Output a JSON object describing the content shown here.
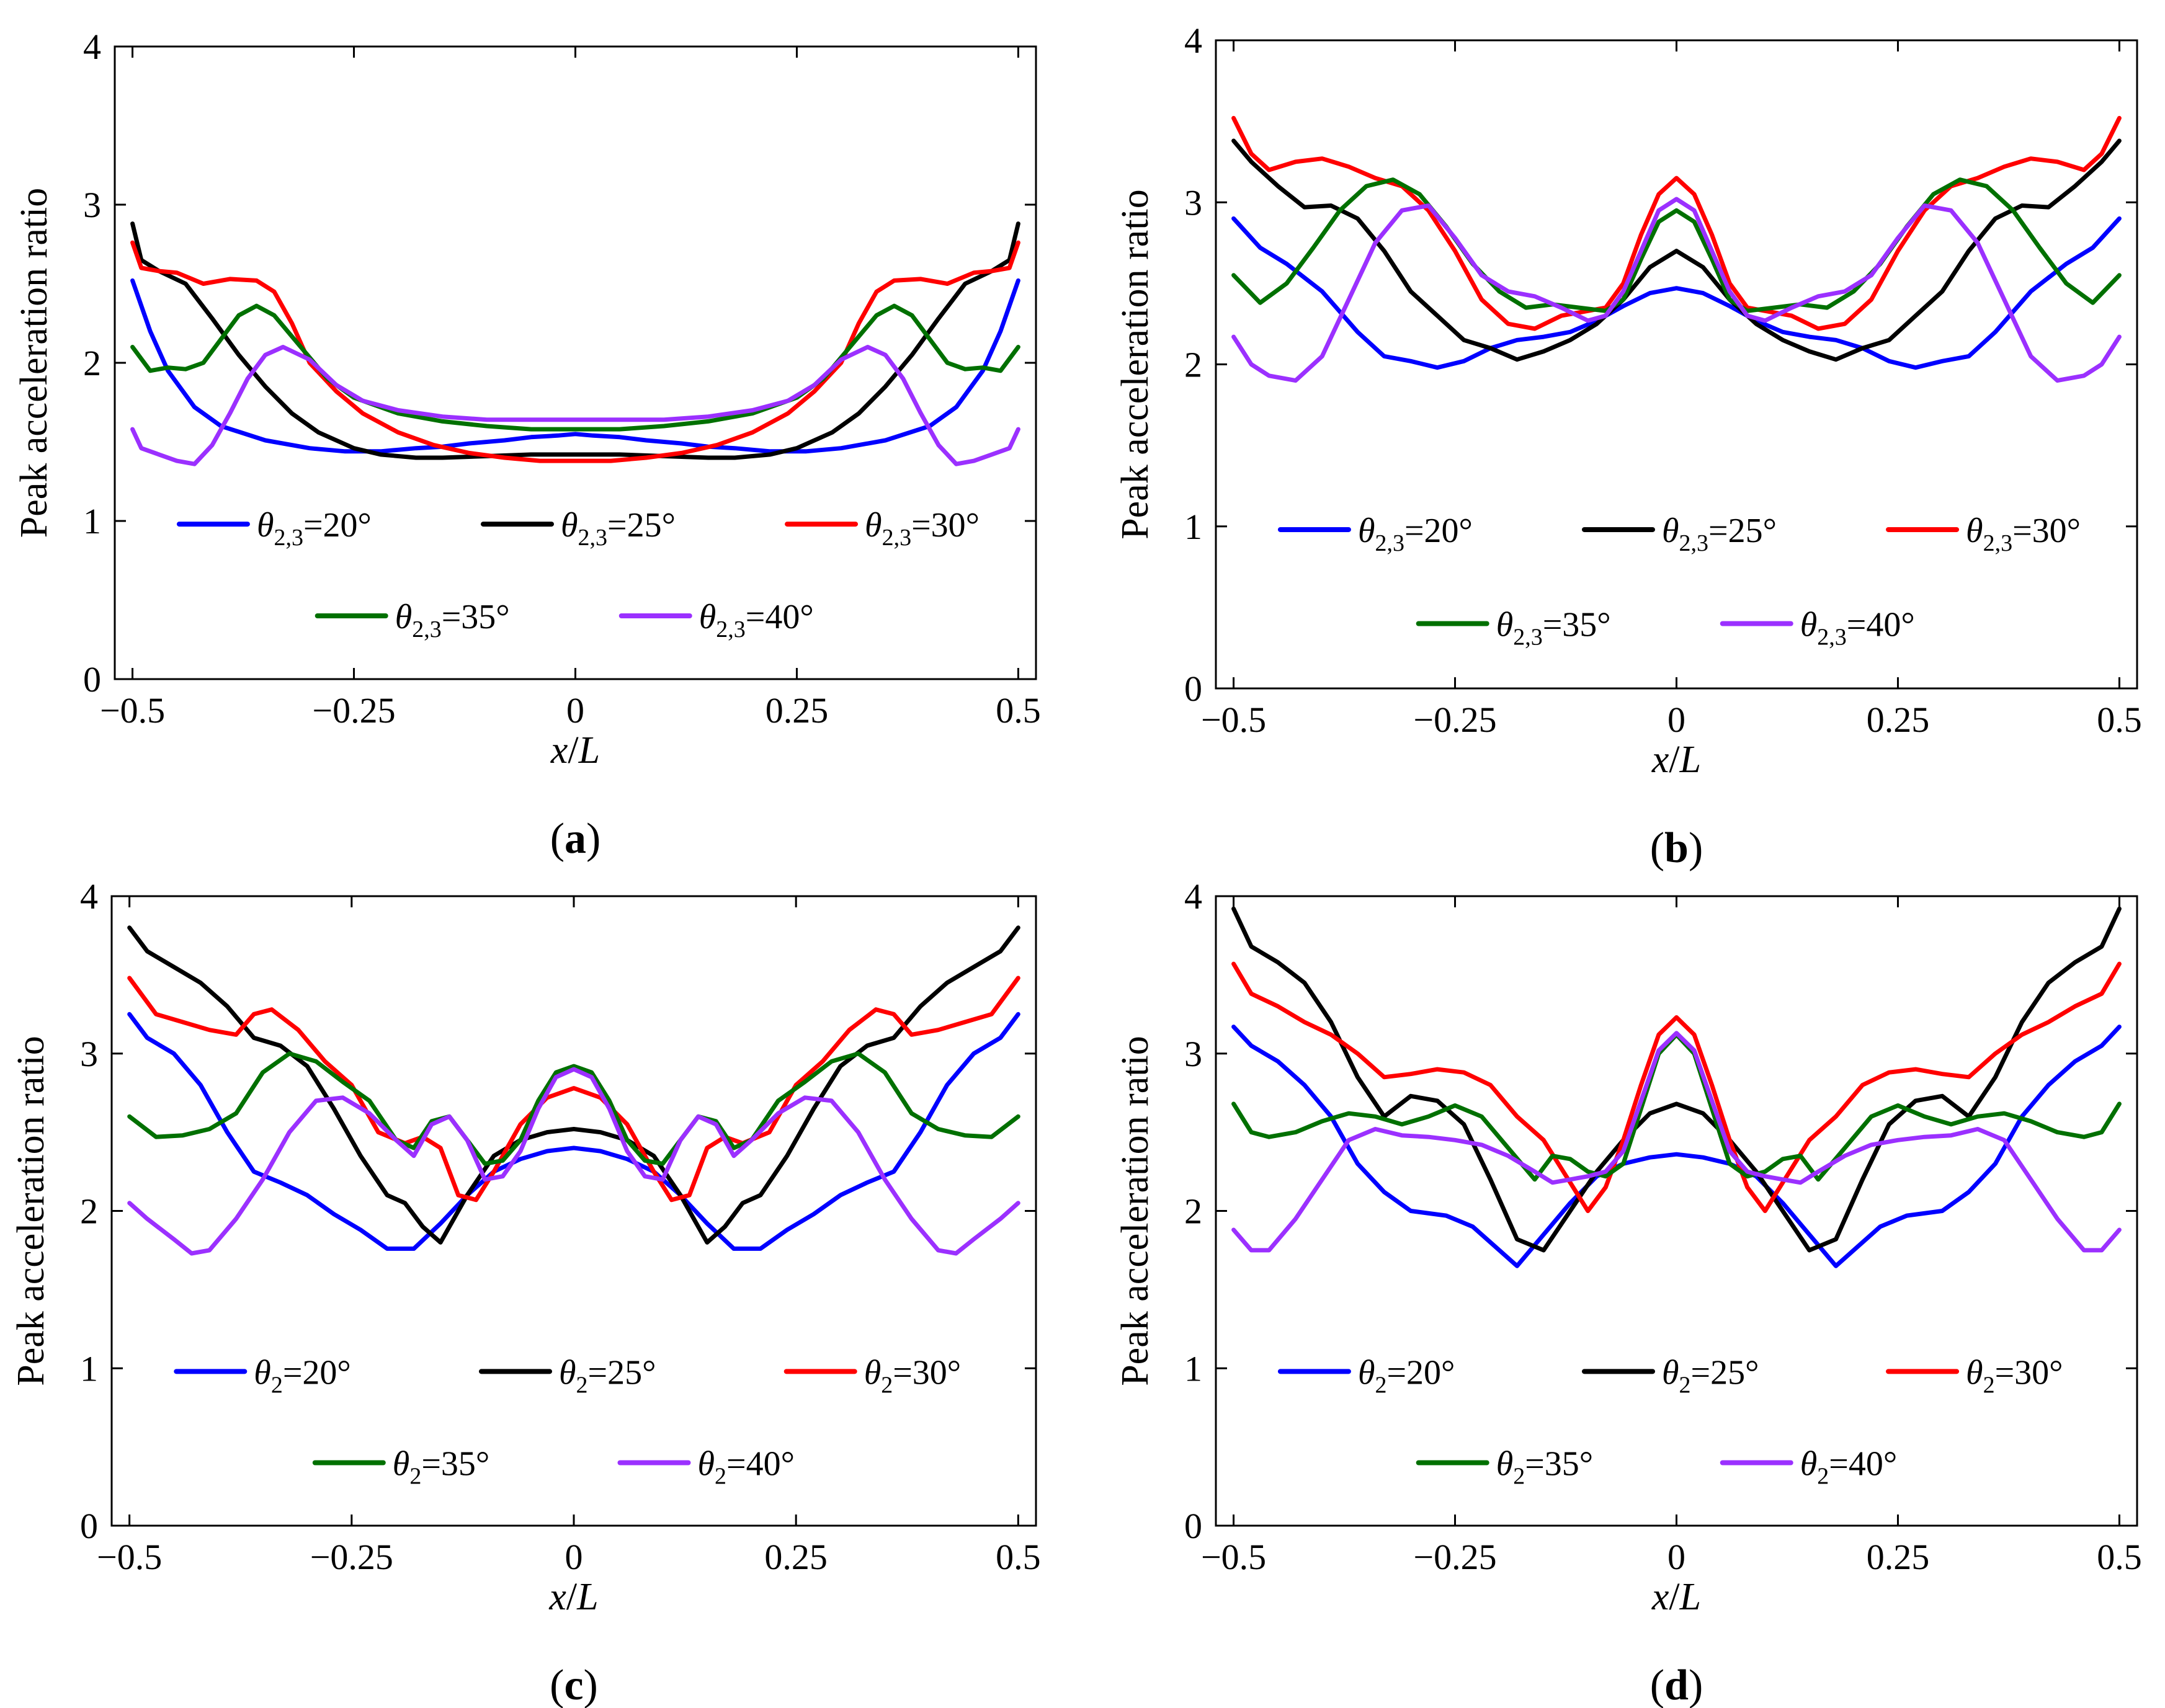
{
  "chart_data": [
    {
      "type": "line",
      "panel_label": "a",
      "xlabel_var": "x",
      "xlabel_sep": "/",
      "xlabel_den": "L",
      "ylabel": "Peak acceleration ratio",
      "xlim": [
        -0.52,
        0.52
      ],
      "ylim": [
        0,
        4
      ],
      "xticks": [
        -0.5,
        -0.25,
        0,
        0.25,
        0.5
      ],
      "xtick_labels": [
        "−0.5",
        "−0.25",
        "0",
        "0.25",
        "0.5"
      ],
      "yticks": [
        0,
        1,
        2,
        3,
        4
      ],
      "ytick_labels": [
        "0",
        "1",
        "2",
        "3",
        "4"
      ],
      "legend_sub": "2,3",
      "series": [
        {
          "name": "θ2,3=20°",
          "value_label": "=20°",
          "color": "#0000ff",
          "x": [
            0,
            0.02,
            0.05,
            0.08,
            0.12,
            0.15,
            0.18,
            0.22,
            0.26,
            0.3,
            0.35,
            0.4,
            0.43,
            0.46,
            0.48,
            0.5
          ],
          "y": [
            1.55,
            1.54,
            1.53,
            1.51,
            1.49,
            1.47,
            1.46,
            1.44,
            1.44,
            1.46,
            1.51,
            1.6,
            1.72,
            1.95,
            2.2,
            2.52
          ]
        },
        {
          "name": "θ2,3=25°",
          "value_label": "=25°",
          "color": "#000000",
          "x": [
            0,
            0.05,
            0.1,
            0.15,
            0.18,
            0.22,
            0.25,
            0.29,
            0.32,
            0.35,
            0.38,
            0.41,
            0.44,
            0.47,
            0.49,
            0.5
          ],
          "y": [
            1.42,
            1.42,
            1.41,
            1.4,
            1.4,
            1.42,
            1.46,
            1.56,
            1.68,
            1.85,
            2.05,
            2.28,
            2.5,
            2.58,
            2.65,
            2.88
          ]
        },
        {
          "name": "θ2,3=30°",
          "value_label": "=30°",
          "color": "#ff0000",
          "x": [
            0,
            0.04,
            0.08,
            0.12,
            0.16,
            0.2,
            0.24,
            0.27,
            0.3,
            0.32,
            0.34,
            0.36,
            0.39,
            0.42,
            0.45,
            0.47,
            0.49,
            0.5
          ],
          "y": [
            1.38,
            1.38,
            1.4,
            1.43,
            1.48,
            1.56,
            1.68,
            1.82,
            2.0,
            2.25,
            2.45,
            2.52,
            2.53,
            2.5,
            2.57,
            2.58,
            2.6,
            2.76
          ]
        },
        {
          "name": "θ2,3=35°",
          "value_label": "=35°",
          "color": "#007000",
          "x": [
            0,
            0.05,
            0.1,
            0.15,
            0.2,
            0.25,
            0.28,
            0.31,
            0.34,
            0.36,
            0.38,
            0.4,
            0.42,
            0.44,
            0.46,
            0.48,
            0.5
          ],
          "y": [
            1.58,
            1.58,
            1.6,
            1.63,
            1.68,
            1.78,
            1.9,
            2.1,
            2.3,
            2.36,
            2.3,
            2.15,
            2.0,
            1.96,
            1.97,
            1.95,
            2.1
          ]
        },
        {
          "name": "θ2,3=40°",
          "value_label": "=40°",
          "color": "#9b30ff",
          "x": [
            0,
            0.05,
            0.1,
            0.15,
            0.2,
            0.24,
            0.27,
            0.3,
            0.33,
            0.35,
            0.37,
            0.39,
            0.41,
            0.43,
            0.45,
            0.47,
            0.49,
            0.5
          ],
          "y": [
            1.64,
            1.64,
            1.64,
            1.66,
            1.7,
            1.76,
            1.86,
            2.02,
            2.1,
            2.05,
            1.9,
            1.68,
            1.48,
            1.36,
            1.38,
            1.42,
            1.46,
            1.58
          ]
        }
      ]
    },
    {
      "type": "line",
      "panel_label": "b",
      "xlabel_var": "x",
      "xlabel_sep": "/",
      "xlabel_den": "L",
      "ylabel": "Peak acceleration ratio",
      "xlim": [
        -0.52,
        0.52
      ],
      "ylim": [
        0,
        4
      ],
      "xticks": [
        -0.5,
        -0.25,
        0,
        0.25,
        0.5
      ],
      "xtick_labels": [
        "−0.5",
        "−0.25",
        "0",
        "0.25",
        "0.5"
      ],
      "yticks": [
        0,
        1,
        2,
        3,
        4
      ],
      "ytick_labels": [
        "0",
        "1",
        "2",
        "3",
        "4"
      ],
      "legend_sub": "2,3",
      "series": [
        {
          "name": "θ2,3=20°",
          "value_label": "=20°",
          "color": "#0000ff",
          "x": [
            0,
            0.03,
            0.06,
            0.09,
            0.12,
            0.15,
            0.18,
            0.21,
            0.24,
            0.27,
            0.3,
            0.33,
            0.36,
            0.4,
            0.44,
            0.47,
            0.5
          ],
          "y": [
            2.47,
            2.44,
            2.36,
            2.27,
            2.2,
            2.17,
            2.15,
            2.1,
            2.02,
            1.98,
            2.02,
            2.05,
            2.2,
            2.45,
            2.62,
            2.72,
            2.9
          ]
        },
        {
          "name": "θ2,3=25°",
          "value_label": "=25°",
          "color": "#000000",
          "x": [
            0,
            0.03,
            0.06,
            0.09,
            0.12,
            0.15,
            0.18,
            0.21,
            0.24,
            0.27,
            0.3,
            0.33,
            0.36,
            0.39,
            0.42,
            0.45,
            0.48,
            0.5
          ],
          "y": [
            2.7,
            2.6,
            2.4,
            2.25,
            2.15,
            2.08,
            2.03,
            2.1,
            2.15,
            2.3,
            2.45,
            2.7,
            2.9,
            2.98,
            2.97,
            3.1,
            3.25,
            3.38
          ]
        },
        {
          "name": "θ2,3=30°",
          "value_label": "=30°",
          "color": "#ff0000",
          "x": [
            0,
            0.02,
            0.04,
            0.06,
            0.08,
            0.1,
            0.13,
            0.16,
            0.19,
            0.22,
            0.25,
            0.28,
            0.31,
            0.34,
            0.37,
            0.4,
            0.43,
            0.46,
            0.48,
            0.5
          ],
          "y": [
            3.15,
            3.05,
            2.8,
            2.5,
            2.35,
            2.33,
            2.3,
            2.22,
            2.25,
            2.4,
            2.7,
            2.95,
            3.1,
            3.15,
            3.22,
            3.27,
            3.25,
            3.2,
            3.3,
            3.52
          ]
        },
        {
          "name": "θ2,3=35°",
          "value_label": "=35°",
          "color": "#007000",
          "x": [
            0,
            0.02,
            0.04,
            0.06,
            0.08,
            0.11,
            0.14,
            0.17,
            0.2,
            0.23,
            0.26,
            0.29,
            0.32,
            0.35,
            0.38,
            0.41,
            0.44,
            0.47,
            0.5
          ],
          "y": [
            2.95,
            2.88,
            2.65,
            2.4,
            2.33,
            2.35,
            2.37,
            2.35,
            2.45,
            2.62,
            2.85,
            3.05,
            3.14,
            3.1,
            2.95,
            2.72,
            2.5,
            2.38,
            2.55
          ]
        },
        {
          "name": "θ2,3=40°",
          "value_label": "=40°",
          "color": "#9b30ff",
          "x": [
            0,
            0.02,
            0.04,
            0.06,
            0.08,
            0.1,
            0.13,
            0.16,
            0.19,
            0.22,
            0.25,
            0.28,
            0.31,
            0.34,
            0.37,
            0.4,
            0.43,
            0.46,
            0.48,
            0.5
          ],
          "y": [
            3.02,
            2.95,
            2.7,
            2.45,
            2.3,
            2.27,
            2.35,
            2.42,
            2.45,
            2.55,
            2.78,
            2.98,
            2.95,
            2.75,
            2.4,
            2.05,
            1.9,
            1.93,
            2.0,
            2.17
          ]
        }
      ]
    },
    {
      "type": "line",
      "panel_label": "c",
      "xlabel_var": "x",
      "xlabel_sep": "/",
      "xlabel_den": "L",
      "ylabel": "Peak acceleration ratio",
      "xlim": [
        -0.52,
        0.52
      ],
      "ylim": [
        0,
        4
      ],
      "xticks": [
        -0.5,
        -0.25,
        0,
        0.25,
        0.5
      ],
      "xtick_labels": [
        "−0.5",
        "−0.25",
        "0",
        "0.25",
        "0.5"
      ],
      "yticks": [
        0,
        1,
        2,
        3,
        4
      ],
      "ytick_labels": [
        "0",
        "1",
        "2",
        "3",
        "4"
      ],
      "legend_sub": "2",
      "series": [
        {
          "name": "θ2=20°",
          "value_label": "=20°",
          "color": "#0000ff",
          "x": [
            0,
            0.03,
            0.06,
            0.09,
            0.12,
            0.15,
            0.18,
            0.21,
            0.24,
            0.27,
            0.3,
            0.33,
            0.36,
            0.39,
            0.42,
            0.45,
            0.48,
            0.5
          ],
          "y": [
            2.4,
            2.38,
            2.33,
            2.25,
            2.1,
            1.92,
            1.76,
            1.76,
            1.88,
            1.98,
            2.1,
            2.18,
            2.25,
            2.5,
            2.8,
            3.0,
            3.1,
            3.25
          ]
        },
        {
          "name": "θ2=25°",
          "value_label": "=25°",
          "color": "#000000",
          "x": [
            0,
            0.03,
            0.06,
            0.09,
            0.12,
            0.15,
            0.17,
            0.19,
            0.21,
            0.24,
            0.27,
            0.3,
            0.33,
            0.36,
            0.39,
            0.42,
            0.45,
            0.48,
            0.5
          ],
          "y": [
            2.52,
            2.5,
            2.45,
            2.35,
            2.1,
            1.8,
            1.9,
            2.05,
            2.1,
            2.35,
            2.65,
            2.92,
            3.05,
            3.1,
            3.3,
            3.45,
            3.55,
            3.65,
            3.8
          ]
        },
        {
          "name": "θ2=30°",
          "value_label": "=30°",
          "color": "#ff0000",
          "x": [
            0,
            0.03,
            0.06,
            0.09,
            0.11,
            0.13,
            0.15,
            0.17,
            0.19,
            0.22,
            0.25,
            0.28,
            0.31,
            0.34,
            0.36,
            0.38,
            0.41,
            0.44,
            0.47,
            0.5
          ],
          "y": [
            2.78,
            2.72,
            2.55,
            2.25,
            2.07,
            2.1,
            2.4,
            2.47,
            2.43,
            2.5,
            2.8,
            2.95,
            3.15,
            3.28,
            3.25,
            3.12,
            3.15,
            3.2,
            3.25,
            3.48
          ]
        },
        {
          "name": "θ2=35°",
          "value_label": "=35°",
          "color": "#007000",
          "x": [
            0,
            0.02,
            0.04,
            0.06,
            0.08,
            0.1,
            0.12,
            0.14,
            0.16,
            0.18,
            0.2,
            0.23,
            0.26,
            0.29,
            0.32,
            0.35,
            0.38,
            0.41,
            0.44,
            0.47,
            0.5
          ],
          "y": [
            2.92,
            2.88,
            2.7,
            2.45,
            2.32,
            2.3,
            2.45,
            2.6,
            2.57,
            2.4,
            2.45,
            2.7,
            2.82,
            2.95,
            3.0,
            2.88,
            2.62,
            2.52,
            2.48,
            2.47,
            2.6
          ]
        },
        {
          "name": "θ2=40°",
          "value_label": "=40°",
          "color": "#9b30ff",
          "x": [
            0,
            0.02,
            0.04,
            0.06,
            0.08,
            0.1,
            0.12,
            0.14,
            0.16,
            0.18,
            0.2,
            0.23,
            0.26,
            0.29,
            0.32,
            0.35,
            0.38,
            0.41,
            0.43,
            0.45,
            0.48,
            0.5
          ],
          "y": [
            2.9,
            2.85,
            2.65,
            2.38,
            2.22,
            2.2,
            2.45,
            2.6,
            2.55,
            2.35,
            2.45,
            2.62,
            2.72,
            2.7,
            2.5,
            2.2,
            1.95,
            1.75,
            1.73,
            1.82,
            1.95,
            2.05
          ]
        }
      ]
    },
    {
      "type": "line",
      "panel_label": "d",
      "xlabel_var": "x",
      "xlabel_sep": "/",
      "xlabel_den": "L",
      "ylabel": "Peak acceleration ratio",
      "xlim": [
        -0.52,
        0.52
      ],
      "ylim": [
        0,
        4
      ],
      "xticks": [
        -0.5,
        -0.25,
        0,
        0.25,
        0.5
      ],
      "xtick_labels": [
        "−0.5",
        "−0.25",
        "0",
        "0.25",
        "0.5"
      ],
      "yticks": [
        0,
        1,
        2,
        3,
        4
      ],
      "ytick_labels": [
        "0",
        "1",
        "2",
        "3",
        "4"
      ],
      "legend_sub": "2",
      "series": [
        {
          "name": "θ2=20°",
          "value_label": "=20°",
          "color": "#0000ff",
          "x": [
            0,
            0.03,
            0.06,
            0.09,
            0.12,
            0.15,
            0.18,
            0.2,
            0.23,
            0.26,
            0.3,
            0.33,
            0.36,
            0.39,
            0.42,
            0.45,
            0.48,
            0.5
          ],
          "y": [
            2.36,
            2.34,
            2.3,
            2.22,
            2.05,
            1.85,
            1.65,
            1.75,
            1.9,
            1.97,
            2.0,
            2.12,
            2.3,
            2.6,
            2.8,
            2.95,
            3.05,
            3.17
          ]
        },
        {
          "name": "θ2=25°",
          "value_label": "=25°",
          "color": "#000000",
          "x": [
            0,
            0.03,
            0.06,
            0.09,
            0.12,
            0.15,
            0.18,
            0.21,
            0.24,
            0.27,
            0.3,
            0.33,
            0.36,
            0.39,
            0.42,
            0.45,
            0.48,
            0.5
          ],
          "y": [
            2.68,
            2.62,
            2.45,
            2.25,
            2.0,
            1.75,
            1.82,
            2.2,
            2.55,
            2.7,
            2.73,
            2.6,
            2.85,
            3.2,
            3.45,
            3.58,
            3.68,
            3.92
          ]
        },
        {
          "name": "θ2=30°",
          "value_label": "=30°",
          "color": "#ff0000",
          "x": [
            0,
            0.02,
            0.04,
            0.06,
            0.08,
            0.1,
            0.12,
            0.15,
            0.18,
            0.21,
            0.24,
            0.27,
            0.3,
            0.33,
            0.36,
            0.39,
            0.42,
            0.45,
            0.48,
            0.5
          ],
          "y": [
            3.23,
            3.12,
            2.8,
            2.45,
            2.15,
            2.0,
            2.18,
            2.45,
            2.6,
            2.8,
            2.88,
            2.9,
            2.87,
            2.85,
            3.0,
            3.12,
            3.2,
            3.3,
            3.38,
            3.57
          ]
        },
        {
          "name": "θ2=35°",
          "value_label": "=35°",
          "color": "#007000",
          "x": [
            0,
            0.02,
            0.04,
            0.06,
            0.08,
            0.1,
            0.12,
            0.14,
            0.16,
            0.19,
            0.22,
            0.25,
            0.28,
            0.31,
            0.34,
            0.37,
            0.4,
            0.43,
            0.46,
            0.48,
            0.5
          ],
          "y": [
            3.12,
            3.0,
            2.65,
            2.3,
            2.22,
            2.25,
            2.33,
            2.35,
            2.2,
            2.4,
            2.6,
            2.67,
            2.6,
            2.55,
            2.6,
            2.62,
            2.57,
            2.5,
            2.47,
            2.5,
            2.68
          ]
        },
        {
          "name": "θ2=40°",
          "value_label": "=40°",
          "color": "#9b30ff",
          "x": [
            0,
            0.02,
            0.04,
            0.06,
            0.08,
            0.1,
            0.12,
            0.14,
            0.16,
            0.19,
            0.22,
            0.25,
            0.28,
            0.31,
            0.34,
            0.37,
            0.4,
            0.43,
            0.46,
            0.48,
            0.5
          ],
          "y": [
            3.13,
            3.02,
            2.7,
            2.38,
            2.25,
            2.22,
            2.2,
            2.18,
            2.25,
            2.35,
            2.42,
            2.45,
            2.47,
            2.48,
            2.52,
            2.45,
            2.2,
            1.95,
            1.75,
            1.75,
            1.88
          ]
        }
      ]
    }
  ]
}
